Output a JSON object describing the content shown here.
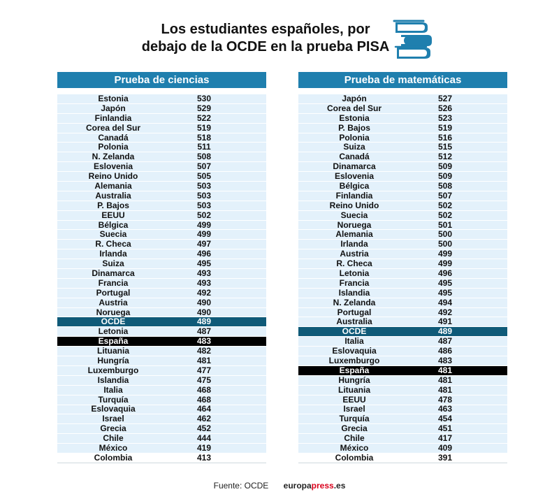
{
  "header": {
    "title_line1": "Los estudiantes españoles, por",
    "title_line2": "debajo de la OCDE en la prueba PISA",
    "icon": "books-icon"
  },
  "colors": {
    "header_blue": "#1f7fae",
    "row_light_blue": "#e3f1fb",
    "oecd_row": "#0f5a78",
    "spain_row": "#000000"
  },
  "chart_data": [
    {
      "type": "table",
      "title": "Prueba de ciencias",
      "rows": [
        {
          "country": "Estonia",
          "score": 530
        },
        {
          "country": "Japón",
          "score": 529
        },
        {
          "country": "Finlandia",
          "score": 522
        },
        {
          "country": "Corea del Sur",
          "score": 519
        },
        {
          "country": "Canadá",
          "score": 518
        },
        {
          "country": "Polonia",
          "score": 511
        },
        {
          "country": "N. Zelanda",
          "score": 508
        },
        {
          "country": "Eslovenia",
          "score": 507
        },
        {
          "country": "Reino Unido",
          "score": 505
        },
        {
          "country": "Alemania",
          "score": 503
        },
        {
          "country": "Australia",
          "score": 503
        },
        {
          "country": "P. Bajos",
          "score": 503
        },
        {
          "country": "EEUU",
          "score": 502
        },
        {
          "country": "Bélgica",
          "score": 499
        },
        {
          "country": "Suecia",
          "score": 499
        },
        {
          "country": "R. Checa",
          "score": 497
        },
        {
          "country": "Irlanda",
          "score": 496
        },
        {
          "country": "Suiza",
          "score": 495
        },
        {
          "country": "Dinamarca",
          "score": 493
        },
        {
          "country": "Francia",
          "score": 493
        },
        {
          "country": "Portugal",
          "score": 492
        },
        {
          "country": "Austria",
          "score": 490
        },
        {
          "country": "Noruega",
          "score": 490
        },
        {
          "country": "OCDE",
          "score": 489,
          "highlight": "oecd"
        },
        {
          "country": "Letonia",
          "score": 487
        },
        {
          "country": "España",
          "score": 483,
          "highlight": "spain"
        },
        {
          "country": "Lituania",
          "score": 482
        },
        {
          "country": "Hungría",
          "score": 481
        },
        {
          "country": "Luxemburgo",
          "score": 477
        },
        {
          "country": "Islandia",
          "score": 475
        },
        {
          "country": "Italia",
          "score": 468
        },
        {
          "country": "Turquía",
          "score": 468
        },
        {
          "country": "Eslovaquia",
          "score": 464
        },
        {
          "country": "Israel",
          "score": 462
        },
        {
          "country": "Grecia",
          "score": 452
        },
        {
          "country": "Chile",
          "score": 444
        },
        {
          "country": "México",
          "score": 419
        },
        {
          "country": "Colombia",
          "score": 413
        }
      ]
    },
    {
      "type": "table",
      "title": "Prueba de matemáticas",
      "rows": [
        {
          "country": "Japón",
          "score": 527
        },
        {
          "country": "Corea del Sur",
          "score": 526
        },
        {
          "country": "Estonia",
          "score": 523
        },
        {
          "country": "P. Bajos",
          "score": 519
        },
        {
          "country": "Polonia",
          "score": 516
        },
        {
          "country": "Suiza",
          "score": 515
        },
        {
          "country": "Canadá",
          "score": 512
        },
        {
          "country": "Dinamarca",
          "score": 509
        },
        {
          "country": "Eslovenia",
          "score": 509
        },
        {
          "country": "Bélgica",
          "score": 508
        },
        {
          "country": "Finlandia",
          "score": 507
        },
        {
          "country": "Reino Unido",
          "score": 502
        },
        {
          "country": "Suecia",
          "score": 502
        },
        {
          "country": "Noruega",
          "score": 501
        },
        {
          "country": "Alemania",
          "score": 500
        },
        {
          "country": "Irlanda",
          "score": 500
        },
        {
          "country": "Austria",
          "score": 499
        },
        {
          "country": "R. Checa",
          "score": 499
        },
        {
          "country": "Letonia",
          "score": 496
        },
        {
          "country": "Francia",
          "score": 495
        },
        {
          "country": "Islandia",
          "score": 495
        },
        {
          "country": "N. Zelanda",
          "score": 494
        },
        {
          "country": "Portugal",
          "score": 492
        },
        {
          "country": "Australia",
          "score": 491
        },
        {
          "country": "OCDE",
          "score": 489,
          "highlight": "oecd"
        },
        {
          "country": "Italia",
          "score": 487
        },
        {
          "country": "Eslovaquia",
          "score": 486
        },
        {
          "country": "Luxemburgo",
          "score": 483
        },
        {
          "country": "España",
          "score": 481,
          "highlight": "spain"
        },
        {
          "country": "Hungría",
          "score": 481
        },
        {
          "country": "Lituania",
          "score": 481
        },
        {
          "country": "EEUU",
          "score": 478
        },
        {
          "country": "Israel",
          "score": 463
        },
        {
          "country": "Turquía",
          "score": 454
        },
        {
          "country": "Grecia",
          "score": 451
        },
        {
          "country": "Chile",
          "score": 417
        },
        {
          "country": "México",
          "score": 409
        },
        {
          "country": "Colombia",
          "score": 391
        }
      ]
    }
  ],
  "footer": {
    "source": "Fuente: OCDE",
    "brand_part1": "europa",
    "brand_part2": "press",
    "brand_part3": ".es"
  }
}
